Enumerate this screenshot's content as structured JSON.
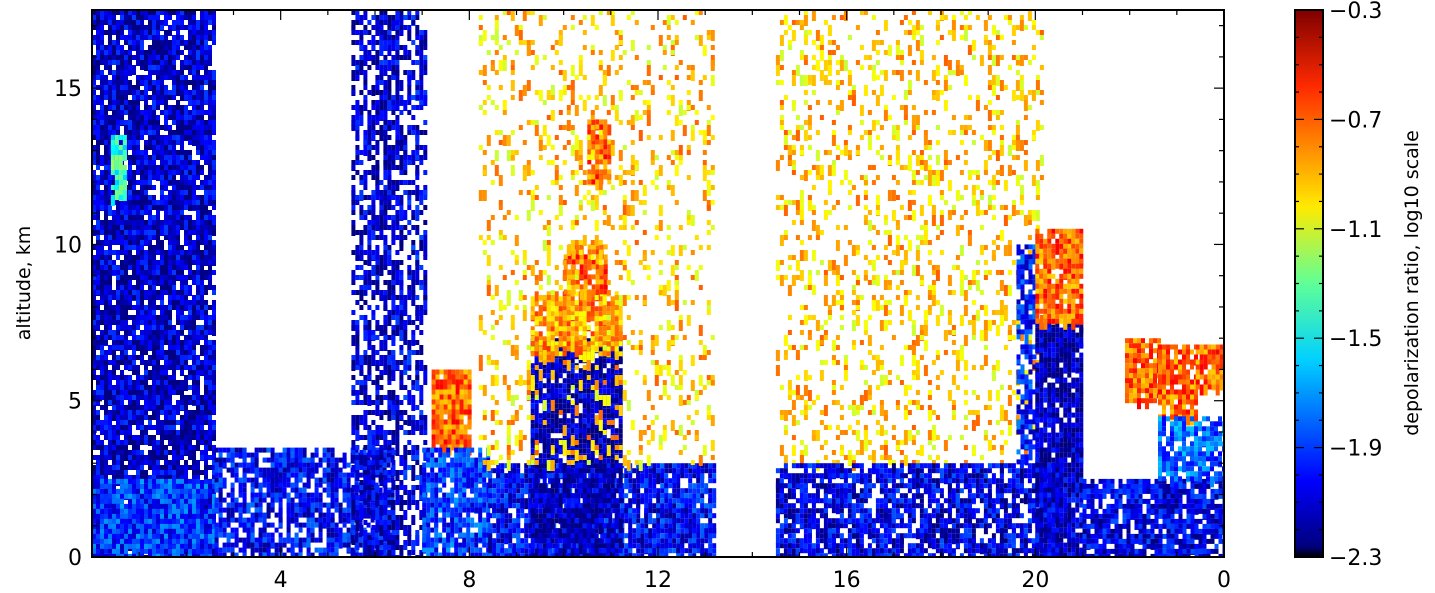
{
  "chart_data": {
    "type": "heatmap",
    "title": "",
    "xlabel": "",
    "ylabel": "altitude, km",
    "x_ticks": [
      "4",
      "8",
      "12",
      "16",
      "20",
      "0"
    ],
    "x_tick_hours": [
      4,
      8,
      12,
      16,
      20,
      24
    ],
    "xlim": [
      0,
      24
    ],
    "y_ticks": [
      0,
      5,
      10,
      15
    ],
    "ylim": [
      0,
      17.5
    ],
    "grid": false,
    "colorbar": {
      "label": "depolarization ratio, log10 scale",
      "range": [
        -2.3,
        -0.3
      ],
      "ticks": [
        "−2.3",
        "−1.9",
        "−1.5",
        "−1.1",
        "−0.7",
        "−0.3"
      ],
      "tick_values": [
        -2.3,
        -1.9,
        -1.5,
        -1.1,
        -0.7,
        -0.3
      ],
      "colormap": "jet"
    },
    "layers": [
      {
        "x": [
          0.0,
          2.6
        ],
        "y": [
          0.0,
          17.5
        ],
        "value": -2.15,
        "density": 0.85
      },
      {
        "x": [
          0.0,
          2.6
        ],
        "y": [
          0.0,
          2.5
        ],
        "value": -1.95,
        "density": 0.95
      },
      {
        "x": [
          0.4,
          0.7
        ],
        "y": [
          11.5,
          13.5
        ],
        "value": -1.45,
        "density": 0.9
      },
      {
        "x": [
          2.6,
          6.4
        ],
        "y": [
          0.0,
          3.5
        ],
        "value": -2.05,
        "density": 0.7
      },
      {
        "x": [
          5.5,
          6.6
        ],
        "y": [
          0.0,
          17.5
        ],
        "value": -2.15,
        "density": 0.55
      },
      {
        "x": [
          6.6,
          7.1
        ],
        "y": [
          0.0,
          17.5
        ],
        "value": -2.1,
        "density": 0.5
      },
      {
        "x": [
          7.2,
          8.0
        ],
        "y": [
          3.5,
          6.0
        ],
        "value": -0.75,
        "density": 0.9
      },
      {
        "x": [
          7.0,
          8.4
        ],
        "y": [
          0.0,
          3.5
        ],
        "value": -1.95,
        "density": 0.8
      },
      {
        "x": [
          8.4,
          13.2
        ],
        "y": [
          0.0,
          3.0
        ],
        "value": -2.05,
        "density": 0.85
      },
      {
        "x": [
          9.3,
          11.2
        ],
        "y": [
          0.0,
          7.0
        ],
        "value": -2.2,
        "density": 0.85
      },
      {
        "x": [
          9.3,
          11.2
        ],
        "y": [
          6.5,
          8.5
        ],
        "value": -0.85,
        "density": 0.8
      },
      {
        "x": [
          10.0,
          10.9
        ],
        "y": [
          8.5,
          10.0
        ],
        "value": -0.75,
        "density": 0.85
      },
      {
        "x": [
          10.5,
          11.0
        ],
        "y": [
          12.0,
          14.0
        ],
        "value": -0.75,
        "density": 0.85
      },
      {
        "x": [
          8.2,
          13.2
        ],
        "y": [
          3.0,
          17.5
        ],
        "value": -0.95,
        "density": 0.18
      },
      {
        "x": [
          14.5,
          20.1
        ],
        "y": [
          3.0,
          17.5
        ],
        "value": -0.95,
        "density": 0.2
      },
      {
        "x": [
          14.5,
          20.5
        ],
        "y": [
          0.0,
          3.0
        ],
        "value": -2.1,
        "density": 0.75
      },
      {
        "x": [
          19.6,
          20.0
        ],
        "y": [
          3.0,
          10.0
        ],
        "value": -2.0,
        "density": 0.6
      },
      {
        "x": [
          20.0,
          21.0
        ],
        "y": [
          3.5,
          7.5
        ],
        "value": -2.2,
        "density": 0.9
      },
      {
        "x": [
          20.0,
          21.0
        ],
        "y": [
          7.5,
          10.5
        ],
        "value": -0.75,
        "density": 0.85
      },
      {
        "x": [
          20.0,
          21.0
        ],
        "y": [
          0.0,
          3.5
        ],
        "value": -2.15,
        "density": 0.9
      },
      {
        "x": [
          21.0,
          24.0
        ],
        "y": [
          0.0,
          2.5
        ],
        "value": -2.1,
        "density": 0.8
      },
      {
        "x": [
          21.9,
          22.6
        ],
        "y": [
          5.0,
          7.0
        ],
        "value": -0.75,
        "density": 0.85
      },
      {
        "x": [
          22.6,
          23.4
        ],
        "y": [
          4.5,
          6.8
        ],
        "value": -0.75,
        "density": 0.85
      },
      {
        "x": [
          23.4,
          24.0
        ],
        "y": [
          5.5,
          6.8
        ],
        "value": -0.75,
        "density": 0.85
      },
      {
        "x": [
          22.6,
          24.0
        ],
        "y": [
          2.5,
          4.5
        ],
        "value": -1.85,
        "density": 0.75
      }
    ]
  }
}
